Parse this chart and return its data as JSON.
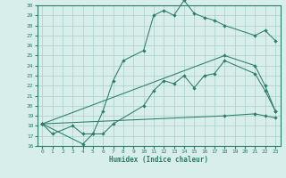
{
  "xlabel": "Humidex (Indice chaleur)",
  "series": {
    "line_zigzag": {
      "x": [
        0,
        1,
        3,
        4,
        5,
        6,
        7,
        10,
        11,
        12,
        13,
        14,
        15,
        16,
        17,
        18,
        21,
        22,
        23
      ],
      "y": [
        18.2,
        17.2,
        18.0,
        17.2,
        17.2,
        17.2,
        18.2,
        20.0,
        21.5,
        22.5,
        22.2,
        23.0,
        21.8,
        23.0,
        23.2,
        24.5,
        23.2,
        21.5,
        19.5
      ]
    },
    "line_top": {
      "x": [
        0,
        4,
        5,
        6,
        7,
        8,
        10,
        11,
        12,
        13,
        14,
        15,
        16,
        17,
        18,
        21,
        22,
        23
      ],
      "y": [
        18.2,
        16.2,
        17.2,
        19.5,
        22.5,
        24.5,
        25.5,
        29.0,
        29.5,
        29.0,
        30.5,
        29.2,
        28.8,
        28.5,
        28.0,
        27.0,
        27.5,
        26.5
      ]
    },
    "line_upper_diag": {
      "x": [
        0,
        18,
        21,
        22,
        23
      ],
      "y": [
        18.2,
        25.0,
        24.0,
        22.0,
        19.5
      ]
    },
    "line_lower_diag": {
      "x": [
        0,
        18,
        21,
        22,
        23
      ],
      "y": [
        18.2,
        19.0,
        19.2,
        19.0,
        18.8
      ]
    }
  },
  "color": "#2a7d6b",
  "bg_color": "#d8eeea",
  "grid_color": "#aacfc8",
  "ylim": [
    16,
    30
  ],
  "xlim": [
    -0.5,
    23.5
  ],
  "yticks": [
    16,
    17,
    18,
    19,
    20,
    21,
    22,
    23,
    24,
    25,
    26,
    27,
    28,
    29,
    30
  ],
  "xticks": [
    0,
    1,
    2,
    3,
    4,
    5,
    6,
    7,
    8,
    9,
    10,
    11,
    12,
    13,
    14,
    15,
    16,
    17,
    18,
    19,
    20,
    21,
    22,
    23
  ]
}
